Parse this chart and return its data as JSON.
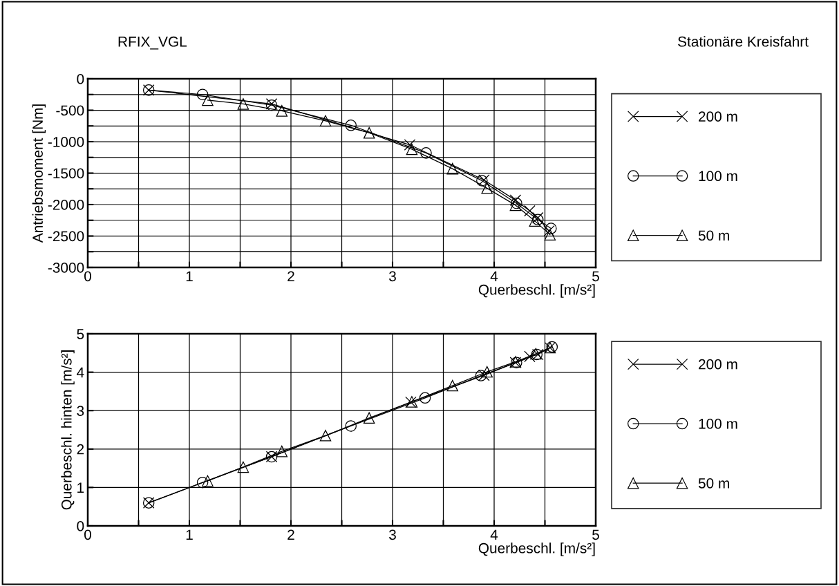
{
  "chart_data": [
    {
      "type": "line",
      "annotations": [
        "RFIX_VGL",
        "Stationäre Kreisfahrt"
      ],
      "xlabel": "Querbeschl. [m/s²]",
      "ylabel": "Antriebsmoment [Nm]",
      "xlim": [
        0,
        5
      ],
      "ylim": [
        -3000,
        0
      ],
      "xticks": [
        0,
        {
          "value": 0.5,
          "label": null
        },
        1,
        {
          "value": 1.5,
          "label": null
        },
        2,
        {
          "value": 2.5,
          "label": null
        },
        3,
        {
          "value": 3.5,
          "label": null
        },
        4,
        {
          "value": 4.5,
          "label": null
        },
        5
      ],
      "yticks": [
        0,
        {
          "value": -250,
          "label": null
        },
        -500,
        {
          "value": -750,
          "label": null
        },
        -1000,
        {
          "value": -1250,
          "label": null
        },
        -1500,
        {
          "value": -1750,
          "label": null
        },
        -2000,
        {
          "value": -2250,
          "label": null
        },
        -2500,
        {
          "value": -2750,
          "label": null
        },
        -3000
      ],
      "grid": true,
      "legend": "right",
      "line_style": "solid",
      "series": [
        {
          "name": "200 m",
          "color": "#000000",
          "marker": "cross",
          "x": [
            0.6,
            1.81,
            3.17,
            3.9,
            4.21,
            4.35,
            4.43,
            4.54
          ],
          "values": [
            -180,
            -400,
            -1050,
            -1610,
            -1930,
            -2100,
            -2210,
            -2420
          ]
        },
        {
          "name": "100 m",
          "color": "#000000",
          "marker": "circle",
          "x": [
            0.6,
            1.13,
            1.81,
            2.59,
            3.33,
            3.88,
            4.22,
            4.43,
            4.56
          ],
          "values": [
            -180,
            -250,
            -420,
            -740,
            -1180,
            -1620,
            -1980,
            -2240,
            -2380
          ]
        },
        {
          "name": "50 m",
          "color": "#000000",
          "marker": "triangle",
          "x": [
            1.18,
            1.53,
            1.91,
            2.34,
            2.77,
            3.19,
            3.59,
            3.93,
            4.21,
            4.4,
            4.55
          ],
          "values": [
            -340,
            -400,
            -510,
            -670,
            -860,
            -1120,
            -1430,
            -1740,
            -2010,
            -2260,
            -2480
          ]
        }
      ]
    },
    {
      "type": "line",
      "xlabel": "Querbeschl. [m/s²]",
      "ylabel": "Querbeschl. hinten [m/s²]",
      "xlim": [
        0,
        5
      ],
      "ylim": [
        0,
        5
      ],
      "xticks": [
        0,
        {
          "value": 0.5,
          "label": null
        },
        1,
        {
          "value": 1.5,
          "label": null
        },
        2,
        {
          "value": 2.5,
          "label": null
        },
        3,
        {
          "value": 3.5,
          "label": null
        },
        4,
        {
          "value": 4.5,
          "label": null
        },
        5
      ],
      "yticks": [
        0,
        1,
        2,
        3,
        4,
        5
      ],
      "grid": true,
      "legend": "right",
      "line_style": "solid",
      "series": [
        {
          "name": "200 m",
          "color": "#000000",
          "marker": "cross",
          "x": [
            0.6,
            1.81,
            3.18,
            3.9,
            4.21,
            4.35,
            4.43,
            4.55
          ],
          "values": [
            0.6,
            1.8,
            3.22,
            3.92,
            4.25,
            4.41,
            4.46,
            4.64
          ]
        },
        {
          "name": "100 m",
          "color": "#000000",
          "marker": "circle",
          "x": [
            0.6,
            1.13,
            1.81,
            2.59,
            3.32,
            3.87,
            4.22,
            4.42,
            4.57
          ],
          "values": [
            0.6,
            1.13,
            1.8,
            2.6,
            3.33,
            3.91,
            4.25,
            4.46,
            4.66
          ]
        },
        {
          "name": "50 m",
          "color": "#000000",
          "marker": "triangle",
          "x": [
            1.18,
            1.53,
            1.91,
            2.34,
            2.77,
            3.19,
            3.59,
            3.93,
            4.21,
            4.41,
            4.55
          ],
          "values": [
            1.17,
            1.53,
            1.94,
            2.35,
            2.81,
            3.23,
            3.65,
            4.01,
            4.27,
            4.48,
            4.64
          ]
        }
      ]
    }
  ]
}
